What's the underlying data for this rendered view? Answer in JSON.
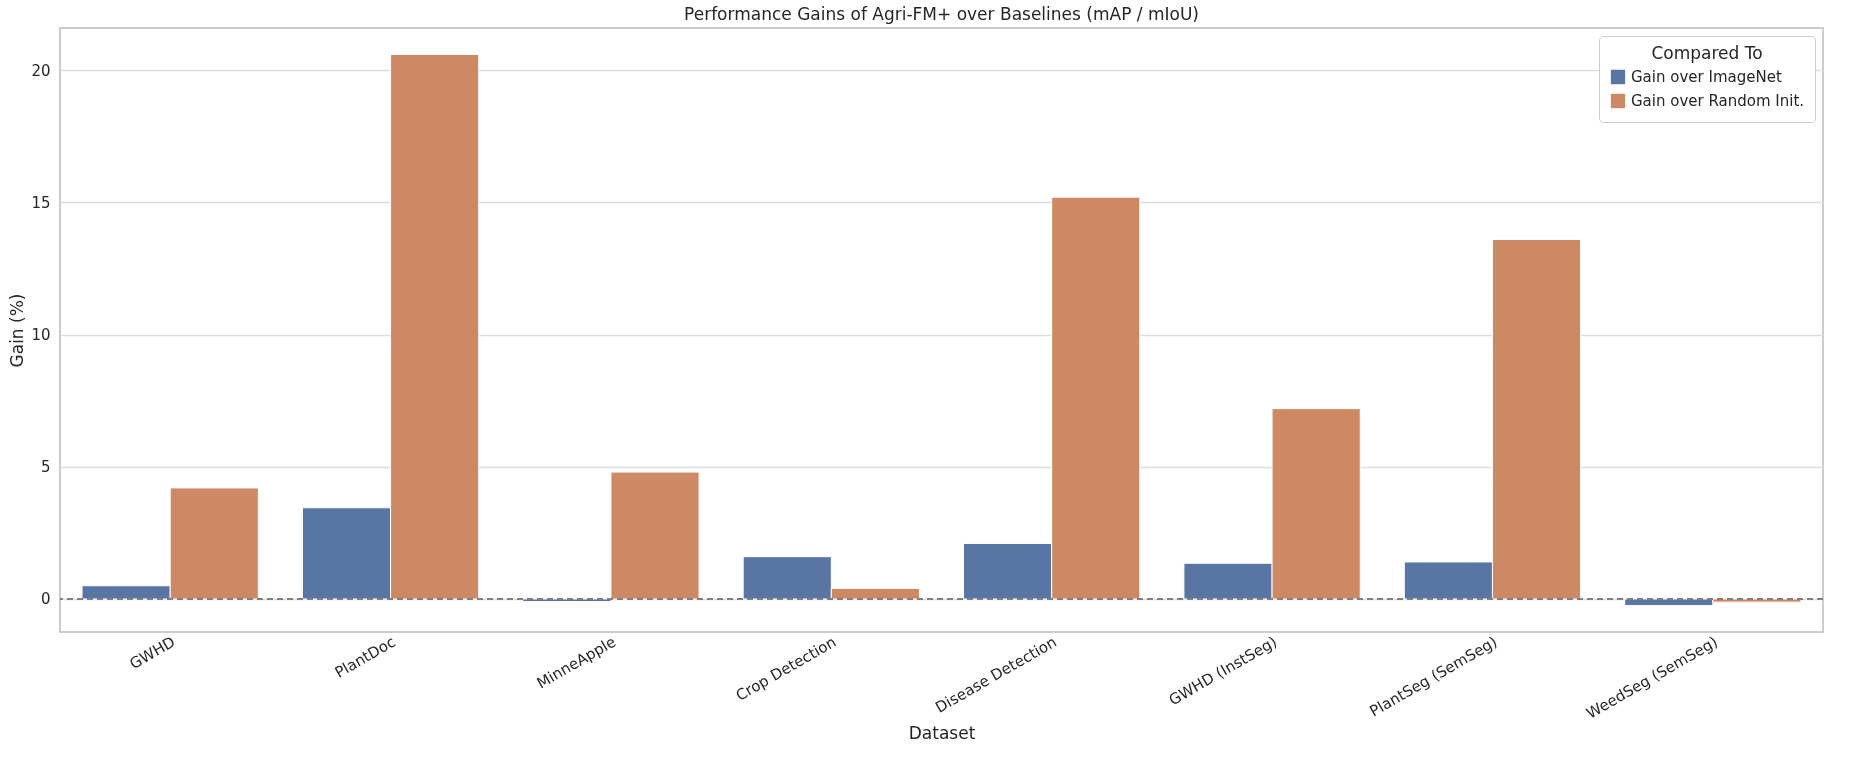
{
  "chart_data": {
    "type": "bar",
    "title": "Performance Gains of Agri-FM+ over Baselines (mAP / mIoU)",
    "xlabel": "Dataset",
    "ylabel": "Gain (%)",
    "legend_title": "Compared To",
    "categories": [
      "GWHD",
      "PlantDoc",
      "MinneApple",
      "Crop Detection",
      "Disease Detection",
      "GWHD (InstSeg)",
      "PlantSeg (SemSeg)",
      "WeedSeg (SemSeg)"
    ],
    "series": [
      {
        "name": "Gain over ImageNet",
        "color": "#5975a4",
        "values": [
          0.5,
          3.45,
          -0.1,
          1.6,
          2.1,
          1.35,
          1.4,
          -0.25
        ]
      },
      {
        "name": "Gain over Random Init.",
        "color": "#cc8963",
        "values": [
          4.2,
          20.6,
          4.8,
          0.4,
          15.2,
          7.2,
          13.6,
          -0.12
        ]
      }
    ],
    "ylim": [
      -1.25,
      21.6
    ],
    "yticks": [
      0,
      5,
      10,
      15,
      20
    ],
    "grid": "y",
    "legend": "top right",
    "ref_lines": [
      {
        "axis": "y",
        "value": 0,
        "color": "#808080",
        "line_style": "dashed"
      }
    ]
  }
}
